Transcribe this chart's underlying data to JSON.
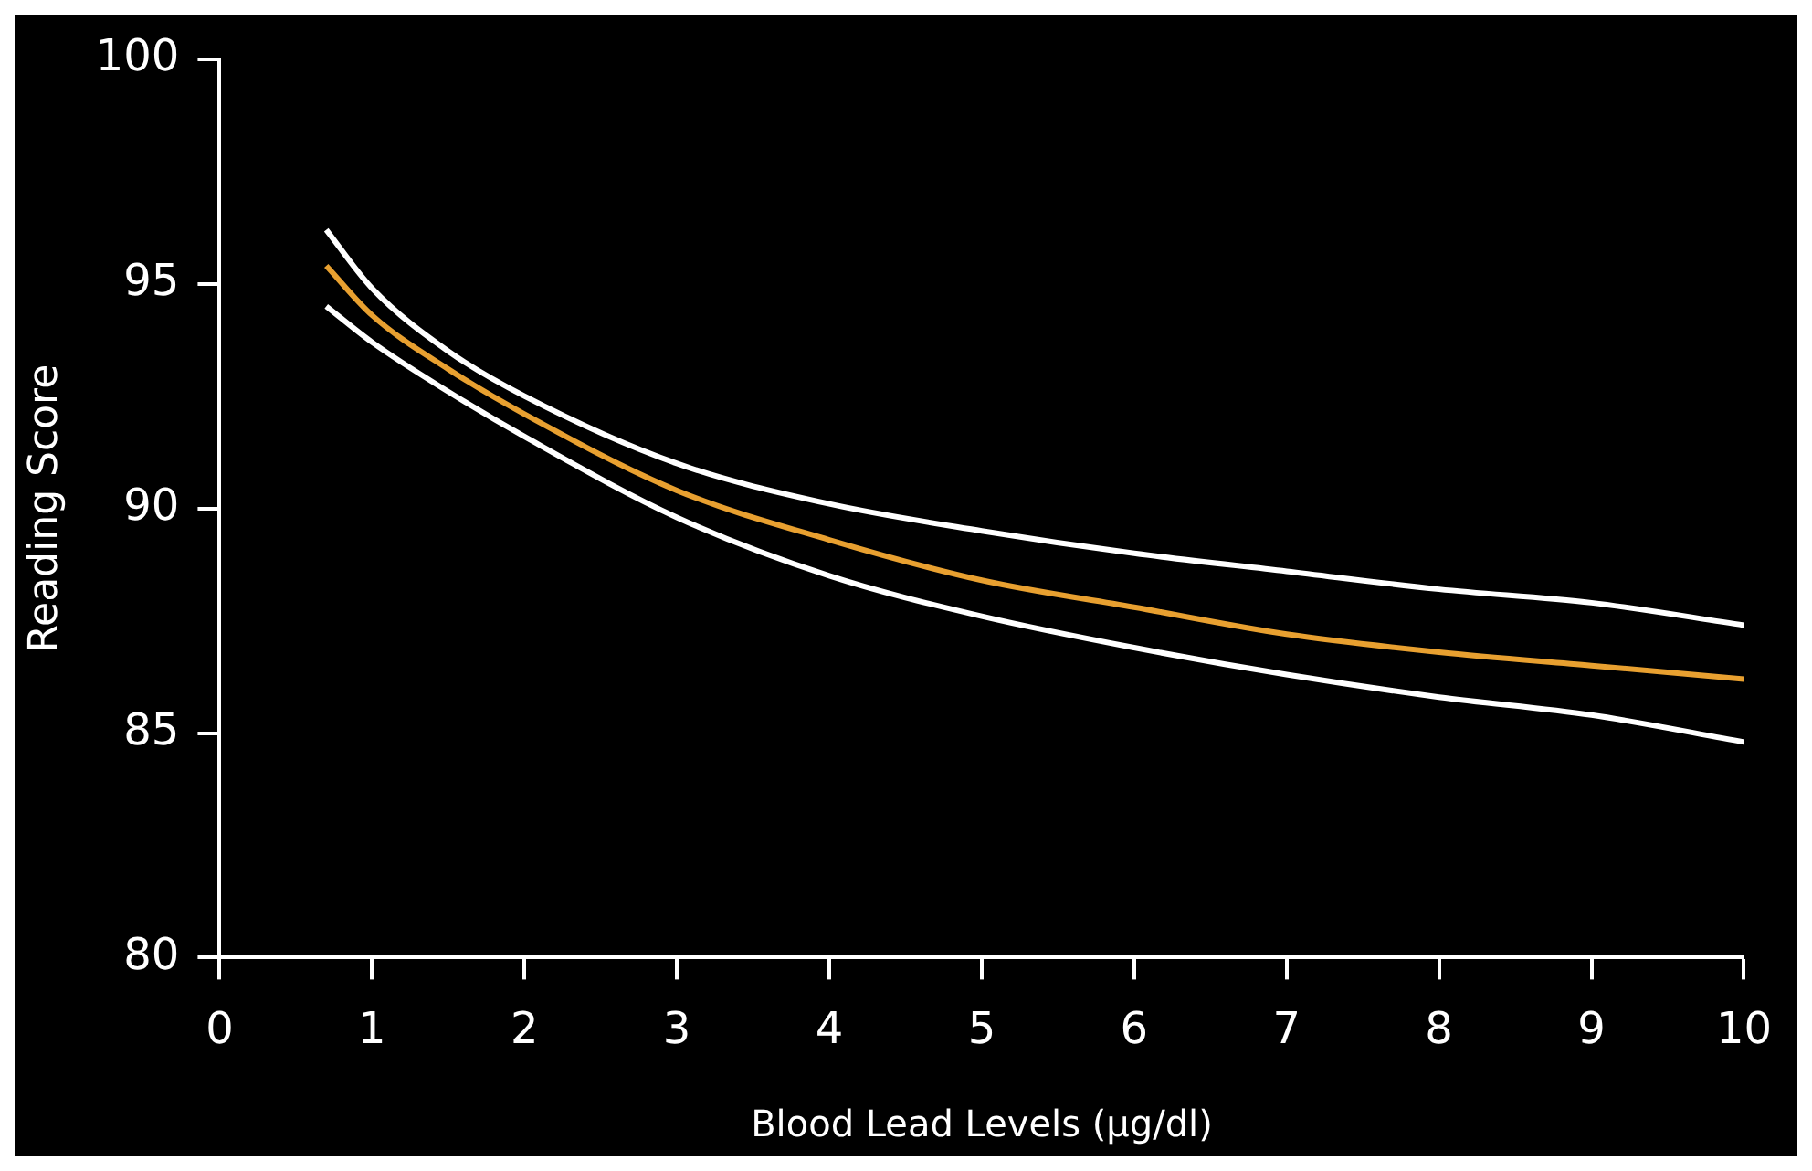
{
  "chart_data": {
    "type": "line",
    "xlabel": "Blood Lead Levels (μg/dl)",
    "ylabel": "Reading Score",
    "x": [
      0.7,
      1,
      1.5,
      2,
      3,
      4,
      5,
      6,
      7,
      8,
      9,
      10
    ],
    "series": [
      {
        "color": "#ffffff",
        "values": [
          96.2,
          94.9,
          93.5,
          92.5,
          91.0,
          90.1,
          89.5,
          89.0,
          88.6,
          88.2,
          87.9,
          87.4
        ]
      },
      {
        "color": "#e8a030",
        "values": [
          95.4,
          94.3,
          93.1,
          92.1,
          90.4,
          89.3,
          88.4,
          87.8,
          87.2,
          86.8,
          86.5,
          86.2
        ]
      },
      {
        "color": "#ffffff",
        "values": [
          94.5,
          93.7,
          92.6,
          91.6,
          89.8,
          88.5,
          87.6,
          86.9,
          86.3,
          85.8,
          85.4,
          84.8
        ]
      }
    ],
    "xlim": [
      0,
      10
    ],
    "xticks": [
      0,
      1,
      2,
      3,
      4,
      5,
      6,
      7,
      8,
      9,
      10
    ],
    "ylim": [
      80,
      100
    ],
    "yticks": [
      80,
      85,
      90,
      95,
      100
    ],
    "grid": false,
    "legend": false,
    "marker": "none",
    "line_style": "solid"
  }
}
